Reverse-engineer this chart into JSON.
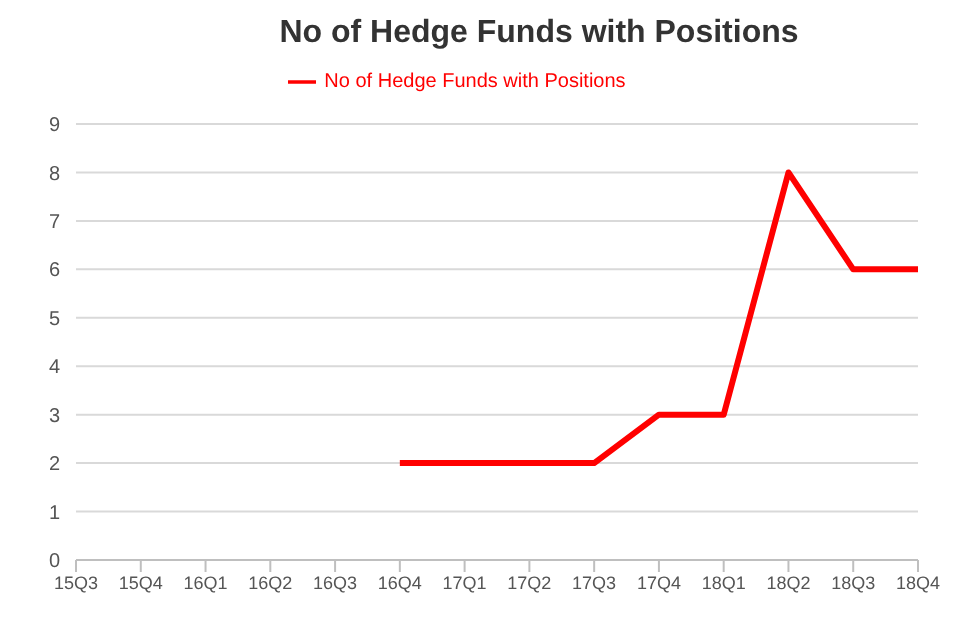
{
  "chart_data": {
    "type": "line",
    "title": "No of Hedge Funds with Positions",
    "categories": [
      "15Q3",
      "15Q4",
      "16Q1",
      "16Q2",
      "16Q3",
      "16Q4",
      "17Q1",
      "17Q2",
      "17Q3",
      "17Q4",
      "18Q1",
      "18Q2",
      "18Q3",
      "18Q4"
    ],
    "series": [
      {
        "name": "No of Hedge Funds with Positions",
        "color": "#ff0000",
        "values": [
          null,
          null,
          null,
          null,
          null,
          2,
          2,
          2,
          2,
          3,
          3,
          8,
          6,
          6
        ]
      }
    ],
    "ylim": [
      0,
      9
    ],
    "yticks": [
      0,
      1,
      2,
      3,
      4,
      5,
      6,
      7,
      8,
      9
    ],
    "grid": "y",
    "legend": "top",
    "marker": "none",
    "line_style": "solid"
  }
}
